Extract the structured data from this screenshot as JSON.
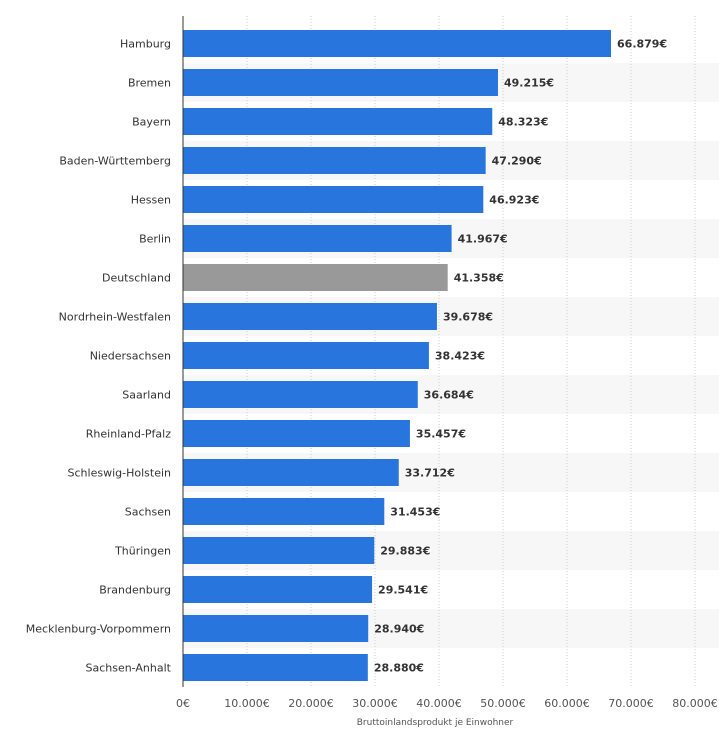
{
  "chart_data": {
    "type": "bar",
    "orientation": "horizontal",
    "title": "",
    "xlabel": "Bruttoinlandsprodukt je Einwohner",
    "ylabel": "",
    "xlim": [
      0,
      80000
    ],
    "grid": true,
    "categories": [
      "Hamburg",
      "Bremen",
      "Bayern",
      "Baden-Württemberg",
      "Hessen",
      "Berlin",
      "Deutschland",
      "Nordrhein-Westfalen",
      "Niedersachsen",
      "Saarland",
      "Rheinland-Pfalz",
      "Schleswig-Holstein",
      "Sachsen",
      "Thüringen",
      "Brandenburg",
      "Mecklenburg-Vorpommern",
      "Sachsen-Anhalt"
    ],
    "values": [
      66879,
      49215,
      48323,
      47290,
      46923,
      41967,
      41358,
      39678,
      38423,
      36684,
      35457,
      33712,
      31453,
      29883,
      29541,
      28940,
      28880
    ],
    "value_labels": [
      "66.879€",
      "49.215€",
      "48.323€",
      "47.290€",
      "46.923€",
      "41.967€",
      "41.358€",
      "39.678€",
      "38.423€",
      "36.684€",
      "35.457€",
      "33.712€",
      "31.453€",
      "29.883€",
      "29.541€",
      "28.940€",
      "28.880€"
    ],
    "highlight_category": "Deutschland",
    "ticks": [
      0,
      10000,
      20000,
      30000,
      40000,
      50000,
      60000,
      70000,
      80000
    ],
    "tick_labels": [
      "0€",
      "10.000€",
      "20.000€",
      "30.000€",
      "40.000€",
      "50.000€",
      "60.000€",
      "70.000€",
      "80.000€"
    ],
    "colors": {
      "bar": "#2876dd",
      "highlight": "#999999",
      "band": "#f7f7f7",
      "grid": "#cccccc",
      "axis": "#333333"
    }
  }
}
